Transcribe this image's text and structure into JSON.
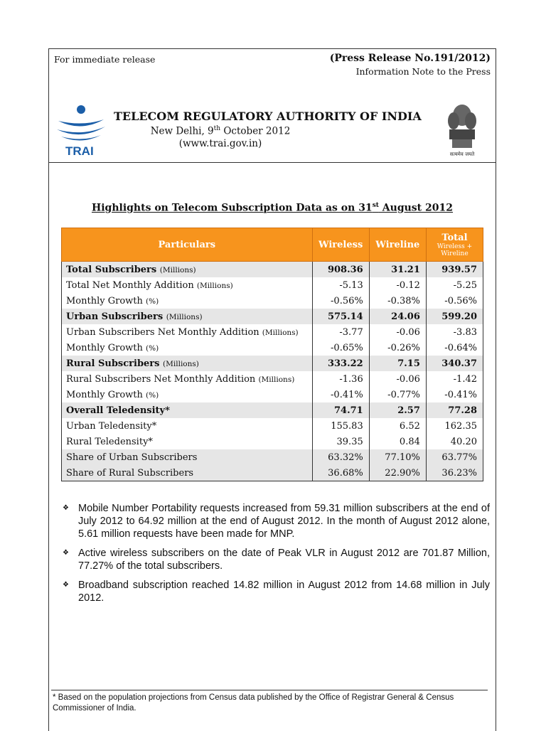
{
  "header": {
    "left": "For immediate release",
    "press_release": "(Press Release No.191/2012)",
    "note": "Information Note to the Press"
  },
  "org": {
    "logo": "TRAI",
    "name": "TELECOM REGULATORY AUTHORITY OF INDIA",
    "place_parts": [
      "New Delhi, 9",
      "th",
      " October 2012"
    ],
    "website": "(www.trai.gov.in)",
    "emblem_motto": "सत्यमेव जयते"
  },
  "heading_parts": [
    "Highlights on Telecom Subscription Data as on 31",
    "st",
    " August 2012"
  ],
  "table": {
    "header": [
      "Particulars",
      "Wireless",
      "Wireline",
      "Total"
    ],
    "total_sub": "Wireless + Wireline",
    "rows": [
      {
        "label": "Total Subscribers",
        "unit": "(Millions)",
        "values": [
          "908.36",
          "31.21",
          "939.57"
        ],
        "bold": true,
        "shade": true
      },
      {
        "label": "Total Net Monthly Addition",
        "unit": "(Millions)",
        "values": [
          "-5.13",
          "-0.12",
          "-5.25"
        ]
      },
      {
        "label": "Monthly Growth",
        "unit": "(%)",
        "values": [
          "-0.56%",
          "-0.38%",
          "-0.56%"
        ]
      },
      {
        "label": "Urban Subscribers",
        "unit": "(Millions)",
        "values": [
          "575.14",
          "24.06",
          "599.20"
        ],
        "bold": true,
        "shade": true
      },
      {
        "label": "Urban Subscribers Net Monthly Addition",
        "unit": "(Millions)",
        "values": [
          "-3.77",
          "-0.06",
          "-3.83"
        ]
      },
      {
        "label": "Monthly Growth",
        "unit": "(%)",
        "values": [
          "-0.65%",
          "-0.26%",
          "-0.64%"
        ]
      },
      {
        "label": "Rural Subscribers",
        "unit": "(Millions)",
        "values": [
          "333.22",
          "7.15",
          "340.37"
        ],
        "bold": true,
        "shade": true
      },
      {
        "label": "Rural Subscribers Net Monthly Addition",
        "unit": "(Millions)",
        "values": [
          "-1.36",
          "-0.06",
          "-1.42"
        ]
      },
      {
        "label": "Monthly Growth",
        "unit": "(%)",
        "values": [
          "-0.41%",
          "-0.77%",
          "-0.41%"
        ]
      },
      {
        "label": "Overall Teledensity*",
        "values": [
          "74.71",
          "2.57",
          "77.28"
        ],
        "bold": true,
        "shade": true
      },
      {
        "label": "Urban Teledensity*",
        "values": [
          "155.83",
          "6.52",
          "162.35"
        ]
      },
      {
        "label": "Rural Teledensity*",
        "values": [
          "39.35",
          "0.84",
          "40.20"
        ]
      },
      {
        "label": "Share of Urban Subscribers",
        "values": [
          "63.32%",
          "77.10%",
          "63.77%"
        ],
        "shade": true
      },
      {
        "label": "Share of Rural Subscribers",
        "values": [
          "36.68%",
          "22.90%",
          "36.23%"
        ],
        "shade": true
      }
    ]
  },
  "bullets": [
    "Mobile Number Portability requests increased from 59.31 million subscribers at the end of July 2012 to 64.92 million at the end of August 2012. In the month of August 2012 alone, 5.61 million requests have been made for MNP.",
    "Active wireless subscribers on the date of Peak VLR in August 2012 are 701.87 Million, 77.27% of the total subscribers.",
    "Broadband subscription reached 14.82 million in August 2012 from 14.68 million in July 2012."
  ],
  "footnote": "* Based on the population projections from Census data published by the Office of Registrar General & Census Commissioner of India."
}
